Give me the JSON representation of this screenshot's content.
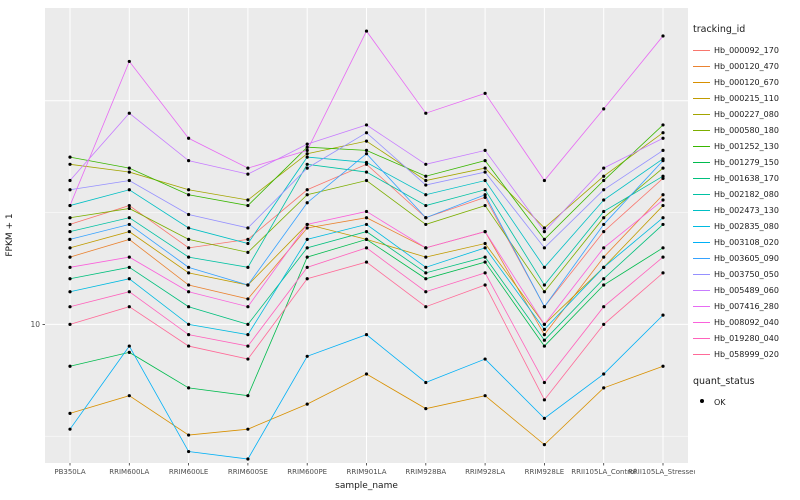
{
  "chart_data": {
    "type": "line",
    "title": "",
    "xlabel": "sample_name",
    "ylabel": "FPKM + 1",
    "y_scale": "log10",
    "ylim": [
      2.4,
      260
    ],
    "grid_major": [
      10,
      100
    ],
    "grid_minor": [
      3.162,
      31.62
    ],
    "y_ticks": [
      {
        "value": 10,
        "label": "10"
      }
    ],
    "panel_bg": "#EBEBEB",
    "grid_color": "#FFFFFF",
    "point_color": "#000000",
    "legend_title": "tracking_id",
    "quant_legend_title": "quant_status",
    "quant_legend_items": [
      {
        "label": "OK"
      }
    ],
    "categories": [
      "PB350LA",
      "RRIM600LA",
      "RRIM600LE",
      "RRIM600SE",
      "RRIM600PE",
      "RRIM901LA",
      "RRIM928BA",
      "RRIM928LA",
      "RRIM928LE",
      "RRII105LA_Control",
      "RRII105LA_Stressed"
    ],
    "series": [
      {
        "name": "Hb_000092_170",
        "color": "#F8766D",
        "values": [
          28,
          34,
          22,
          24,
          40,
          52,
          30,
          37,
          12,
          26,
          45
        ]
      },
      {
        "name": "Hb_000120_470",
        "color": "#EA8331",
        "values": [
          20,
          24,
          15,
          13,
          27,
          30,
          22,
          26,
          9,
          20,
          38
        ]
      },
      {
        "name": "Hb_000120_670",
        "color": "#D89000",
        "values": [
          4.0,
          4.8,
          3.2,
          3.4,
          4.4,
          6.0,
          4.2,
          4.8,
          2.9,
          5.2,
          6.5
        ]
      },
      {
        "name": "Hb_000215_110",
        "color": "#C09B00",
        "values": [
          22,
          26,
          17,
          15,
          28,
          24,
          20,
          23,
          10,
          18,
          34
        ]
      },
      {
        "name": "Hb_000227_080",
        "color": "#A3A500",
        "values": [
          52,
          48,
          40,
          36,
          58,
          66,
          44,
          50,
          27,
          46,
          72
        ]
      },
      {
        "name": "Hb_000580_180",
        "color": "#7CAE00",
        "values": [
          30,
          33,
          24,
          21,
          38,
          44,
          28,
          34,
          14,
          30,
          50
        ]
      },
      {
        "name": "Hb_001252_130",
        "color": "#39B600",
        "values": [
          56,
          50,
          38,
          34,
          62,
          60,
          46,
          54,
          24,
          44,
          78
        ]
      },
      {
        "name": "Hb_001279_150",
        "color": "#00BB4E",
        "values": [
          6.5,
          7.5,
          5.2,
          4.8,
          20,
          24,
          16,
          19,
          8,
          15,
          22
        ]
      },
      {
        "name": "Hb_001638_170",
        "color": "#00BF7D",
        "values": [
          16,
          18,
          12,
          10,
          22,
          26,
          17,
          20,
          8.5,
          16,
          28
        ]
      },
      {
        "name": "Hb_002182_080",
        "color": "#00C1A3",
        "values": [
          26,
          30,
          20,
          18,
          52,
          48,
          34,
          40,
          15,
          32,
          46
        ]
      },
      {
        "name": "Hb_002473_130",
        "color": "#00BFC4",
        "values": [
          34,
          40,
          27,
          23,
          56,
          53,
          38,
          44,
          18,
          36,
          55
        ]
      },
      {
        "name": "Hb_002835_080",
        "color": "#00BAE0",
        "values": [
          14,
          16,
          10,
          9,
          24,
          28,
          18,
          22,
          9.5,
          18,
          30
        ]
      },
      {
        "name": "Hb_003108_020",
        "color": "#00B0F6",
        "values": [
          3.4,
          8.0,
          2.7,
          2.5,
          7.2,
          9.0,
          5.5,
          7.0,
          3.8,
          6.0,
          11
        ]
      },
      {
        "name": "Hb_003605_090",
        "color": "#35A2FF",
        "values": [
          24,
          28,
          18,
          15,
          35,
          58,
          30,
          38,
          12,
          28,
          54
        ]
      },
      {
        "name": "Hb_003750_050",
        "color": "#9590FF",
        "values": [
          40,
          44,
          31,
          27,
          50,
          72,
          42,
          48,
          22,
          40,
          60
        ]
      },
      {
        "name": "Hb_005489_060",
        "color": "#C77CFF",
        "values": [
          44,
          88,
          54,
          47,
          64,
          78,
          52,
          60,
          26,
          50,
          68
        ]
      },
      {
        "name": "Hb_007416_280",
        "color": "#E76BF3",
        "values": [
          34,
          150,
          68,
          50,
          60,
          205,
          88,
          108,
          44,
          92,
          195
        ]
      },
      {
        "name": "Hb_008092_040",
        "color": "#FA62DB",
        "values": [
          18,
          20,
          14,
          12,
          28,
          32,
          22,
          26,
          10,
          22,
          36
        ]
      },
      {
        "name": "Hb_019280_040",
        "color": "#FF62BC",
        "values": [
          12,
          14,
          9,
          8,
          18,
          22,
          14,
          17,
          5.5,
          12,
          20
        ]
      },
      {
        "name": "Hb_058999_020",
        "color": "#FF6A98",
        "values": [
          10,
          12,
          8,
          7,
          16,
          19,
          12,
          15,
          4.6,
          10,
          17
        ]
      }
    ]
  }
}
